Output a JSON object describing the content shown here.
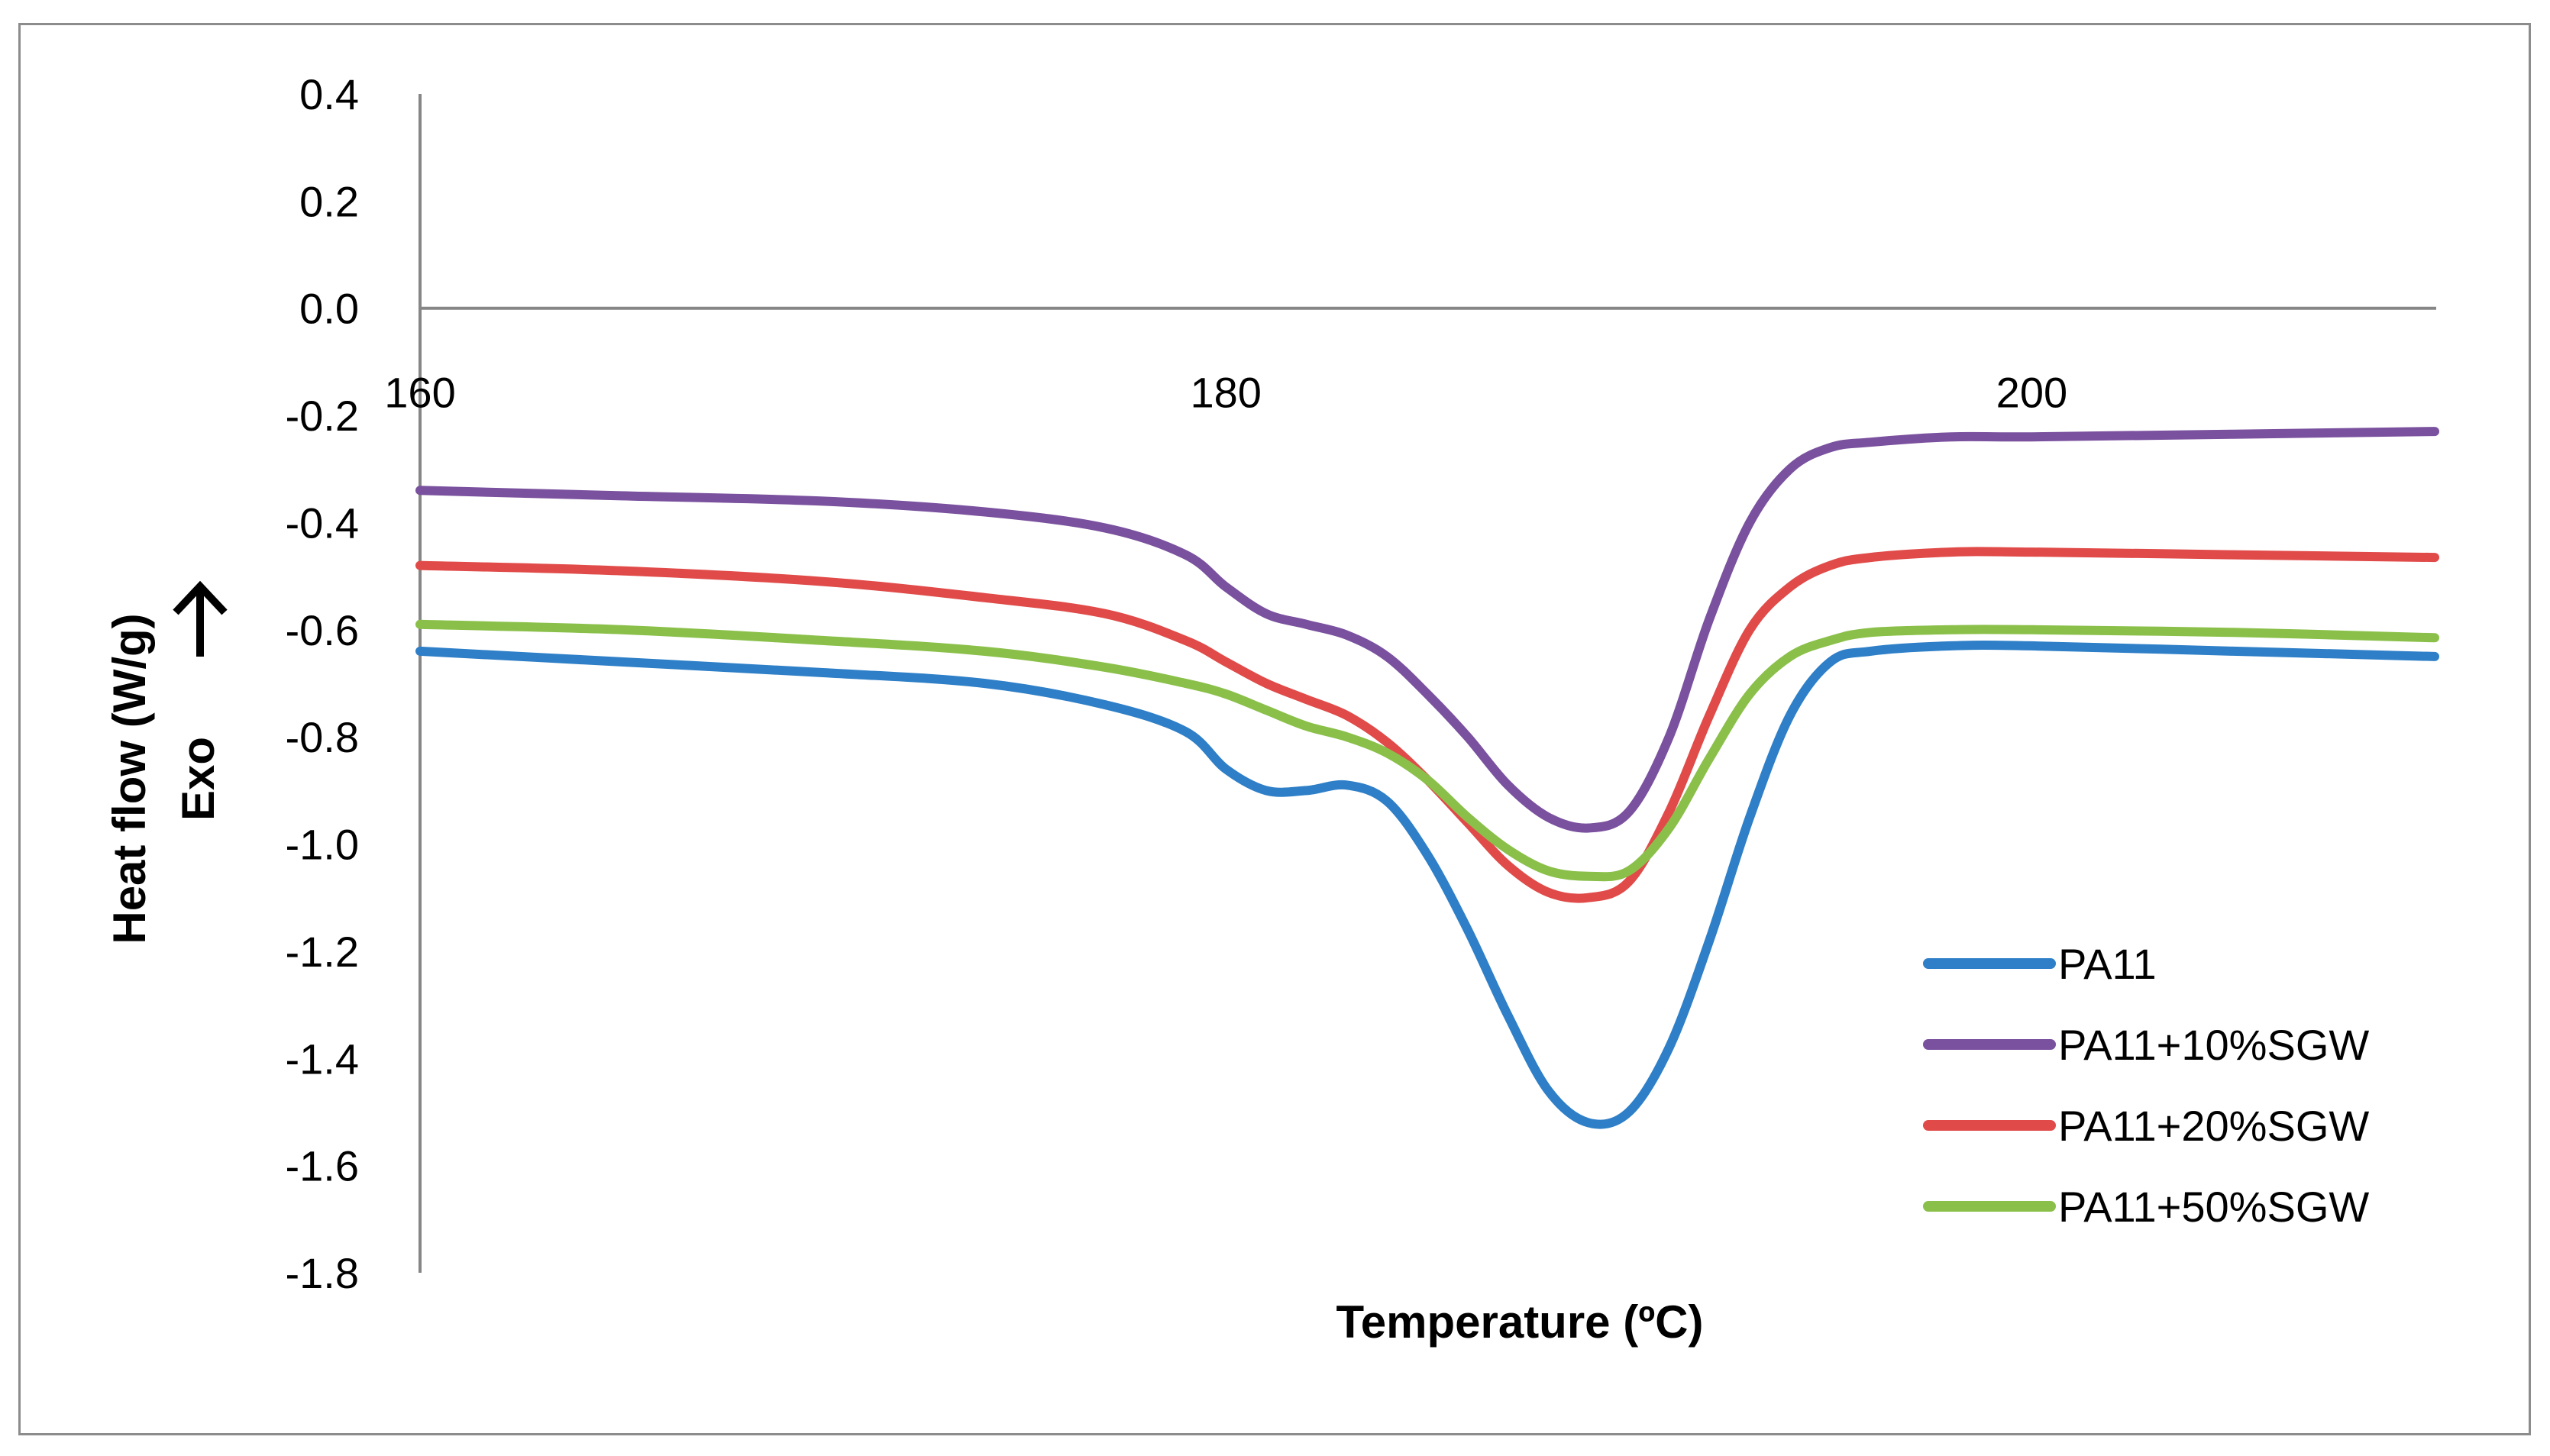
{
  "chart_data": {
    "type": "line",
    "title": "",
    "xlabel": "Temperature (ºC)",
    "ylabel": "Heat flow (W/g)",
    "ylabel_note": "Exo",
    "xlim": [
      160,
      210
    ],
    "ylim": [
      -1.8,
      0.4
    ],
    "x_ticks": [
      160,
      180,
      200
    ],
    "x_tick_labels": [
      "160",
      "180",
      "200"
    ],
    "y_ticks": [
      0.4,
      0.2,
      0.0,
      -0.2,
      -0.4,
      -0.6,
      -0.8,
      -1.0,
      -1.2,
      -1.4,
      -1.6,
      -1.8
    ],
    "y_tick_labels": [
      "0.4",
      "0.2",
      "0.0",
      "-0.2",
      "-0.4",
      "-0.6",
      "-0.8",
      "-1.0",
      "-1.2",
      "-1.4",
      "-1.6",
      "-1.8"
    ],
    "grid": false,
    "legend_position": "bottom-right",
    "series": [
      {
        "name": "PA11",
        "color": "#2e7fc7",
        "points": [
          [
            160,
            -0.64
          ],
          [
            165,
            -0.66
          ],
          [
            170,
            -0.68
          ],
          [
            174,
            -0.7
          ],
          [
            177,
            -0.74
          ],
          [
            179,
            -0.79
          ],
          [
            180,
            -0.86
          ],
          [
            181,
            -0.9
          ],
          [
            182,
            -0.9
          ],
          [
            183,
            -0.89
          ],
          [
            184,
            -0.92
          ],
          [
            185,
            -1.02
          ],
          [
            186,
            -1.16
          ],
          [
            187,
            -1.32
          ],
          [
            188,
            -1.46
          ],
          [
            189,
            -1.52
          ],
          [
            190,
            -1.5
          ],
          [
            191,
            -1.38
          ],
          [
            192,
            -1.18
          ],
          [
            193,
            -0.95
          ],
          [
            194,
            -0.76
          ],
          [
            195,
            -0.66
          ],
          [
            196,
            -0.64
          ],
          [
            198,
            -0.63
          ],
          [
            200,
            -0.63
          ],
          [
            205,
            -0.64
          ],
          [
            210,
            -0.65
          ]
        ]
      },
      {
        "name": "PA11+10%SGW",
        "color": "#7a519e",
        "points": [
          [
            160,
            -0.34
          ],
          [
            165,
            -0.35
          ],
          [
            170,
            -0.36
          ],
          [
            174,
            -0.38
          ],
          [
            177,
            -0.41
          ],
          [
            179,
            -0.46
          ],
          [
            180,
            -0.52
          ],
          [
            181,
            -0.57
          ],
          [
            182,
            -0.59
          ],
          [
            183,
            -0.61
          ],
          [
            184,
            -0.65
          ],
          [
            185,
            -0.72
          ],
          [
            186,
            -0.8
          ],
          [
            187,
            -0.89
          ],
          [
            188,
            -0.95
          ],
          [
            189,
            -0.97
          ],
          [
            190,
            -0.94
          ],
          [
            191,
            -0.8
          ],
          [
            192,
            -0.58
          ],
          [
            193,
            -0.4
          ],
          [
            194,
            -0.3
          ],
          [
            195,
            -0.26
          ],
          [
            196,
            -0.25
          ],
          [
            198,
            -0.24
          ],
          [
            200,
            -0.24
          ],
          [
            205,
            -0.235
          ],
          [
            210,
            -0.23
          ]
        ]
      },
      {
        "name": "PA11+20%SGW",
        "color": "#e04b49",
        "points": [
          [
            160,
            -0.48
          ],
          [
            165,
            -0.49
          ],
          [
            170,
            -0.51
          ],
          [
            174,
            -0.54
          ],
          [
            177,
            -0.57
          ],
          [
            179,
            -0.62
          ],
          [
            180,
            -0.66
          ],
          [
            181,
            -0.7
          ],
          [
            182,
            -0.73
          ],
          [
            183,
            -0.76
          ],
          [
            184,
            -0.81
          ],
          [
            185,
            -0.88
          ],
          [
            186,
            -0.96
          ],
          [
            187,
            -1.04
          ],
          [
            188,
            -1.09
          ],
          [
            189,
            -1.1
          ],
          [
            190,
            -1.07
          ],
          [
            191,
            -0.94
          ],
          [
            192,
            -0.76
          ],
          [
            193,
            -0.6
          ],
          [
            194,
            -0.52
          ],
          [
            195,
            -0.48
          ],
          [
            196,
            -0.465
          ],
          [
            198,
            -0.455
          ],
          [
            200,
            -0.455
          ],
          [
            205,
            -0.46
          ],
          [
            210,
            -0.465
          ]
        ]
      },
      {
        "name": "PA11+50%SGW",
        "color": "#8ac04a",
        "points": [
          [
            160,
            -0.59
          ],
          [
            165,
            -0.6
          ],
          [
            170,
            -0.62
          ],
          [
            174,
            -0.64
          ],
          [
            177,
            -0.67
          ],
          [
            179,
            -0.7
          ],
          [
            180,
            -0.72
          ],
          [
            181,
            -0.75
          ],
          [
            182,
            -0.78
          ],
          [
            183,
            -0.8
          ],
          [
            184,
            -0.83
          ],
          [
            185,
            -0.88
          ],
          [
            186,
            -0.95
          ],
          [
            187,
            -1.01
          ],
          [
            188,
            -1.05
          ],
          [
            189,
            -1.06
          ],
          [
            190,
            -1.05
          ],
          [
            191,
            -0.97
          ],
          [
            192,
            -0.84
          ],
          [
            193,
            -0.72
          ],
          [
            194,
            -0.65
          ],
          [
            195,
            -0.62
          ],
          [
            196,
            -0.605
          ],
          [
            198,
            -0.6
          ],
          [
            200,
            -0.6
          ],
          [
            205,
            -0.605
          ],
          [
            210,
            -0.615
          ]
        ]
      }
    ]
  }
}
